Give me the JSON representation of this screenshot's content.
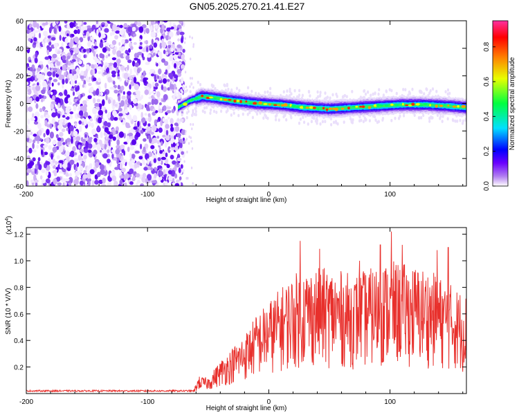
{
  "title": "GN05.2025.270.21.41.E27",
  "colors": {
    "snr_line": "#e8302c",
    "axis": "#000000",
    "background": "#ffffff"
  },
  "chart_data": [
    {
      "type": "heatmap",
      "name": "spectrogram",
      "xlabel": "Height of straight line (km)",
      "ylabel": "Frequency (Hz)",
      "xlim": [
        -200,
        163
      ],
      "ylim": [
        -60,
        60
      ],
      "x_ticks": [
        -200,
        -100,
        0,
        100
      ],
      "y_ticks": [
        -60,
        -40,
        -20,
        0,
        20,
        40,
        60
      ],
      "noise_region_km": [
        -200,
        -70
      ],
      "signal_region_km": [
        -75,
        163
      ],
      "ridge_center_hz": [
        {
          "x": -75,
          "y": -3
        },
        {
          "x": -65,
          "y": 2
        },
        {
          "x": -55,
          "y": 5
        },
        {
          "x": -45,
          "y": 4
        },
        {
          "x": -30,
          "y": 2
        },
        {
          "x": -10,
          "y": 0
        },
        {
          "x": 10,
          "y": -1
        },
        {
          "x": 30,
          "y": -3
        },
        {
          "x": 50,
          "y": -4
        },
        {
          "x": 70,
          "y": -3
        },
        {
          "x": 90,
          "y": -2
        },
        {
          "x": 110,
          "y": -1
        },
        {
          "x": 130,
          "y": -1
        },
        {
          "x": 150,
          "y": -2
        },
        {
          "x": 163,
          "y": -3
        }
      ],
      "colorbar": {
        "label": "Normalized spectral amplitude",
        "range": [
          0,
          0.95
        ],
        "ticks": [
          "0.0",
          "0.2",
          "0.4",
          "0.6",
          "0.8"
        ],
        "tick_values": [
          0.0,
          0.2,
          0.4,
          0.6,
          0.8
        ],
        "colors": [
          "#ffffff",
          "#b07cf0",
          "#6a00ff",
          "#0000ff",
          "#00e0ff",
          "#00ff40",
          "#e8ff00",
          "#ff8000",
          "#ff0000",
          "#ff30a0"
        ]
      }
    },
    {
      "type": "line",
      "name": "snr",
      "xlabel": "Height of straight line (km)",
      "ylabel": "SNR (10 * V/V)",
      "scale_note_base": "(x10",
      "scale_note_exp": "4",
      "scale_note_close": ")",
      "xlim": [
        -200,
        163
      ],
      "ylim": [
        0,
        1.25
      ],
      "x_ticks": [
        -200,
        -100,
        0,
        100
      ],
      "y_ticks": [
        0.2,
        0.4,
        0.6,
        0.8,
        1.0,
        1.2
      ],
      "y_tick_labels": [
        "0.2",
        "0.4",
        "0.6",
        "0.8",
        "1.0",
        "1.2"
      ],
      "baseline_noise": 0.02,
      "envelope": [
        {
          "x": -200,
          "y": 0.02
        },
        {
          "x": -62,
          "y": 0.02
        },
        {
          "x": -58,
          "y": 0.13
        },
        {
          "x": -50,
          "y": 0.12
        },
        {
          "x": -40,
          "y": 0.25
        },
        {
          "x": -30,
          "y": 0.35
        },
        {
          "x": -20,
          "y": 0.45
        },
        {
          "x": -10,
          "y": 0.6
        },
        {
          "x": 0,
          "y": 0.7
        },
        {
          "x": 10,
          "y": 0.8
        },
        {
          "x": 20,
          "y": 0.9
        },
        {
          "x": 30,
          "y": 0.95
        },
        {
          "x": 50,
          "y": 0.95
        },
        {
          "x": 70,
          "y": 0.9
        },
        {
          "x": 100,
          "y": 1.0
        },
        {
          "x": 130,
          "y": 0.95
        },
        {
          "x": 163,
          "y": 0.75
        }
      ],
      "peaks": [
        {
          "x": 26,
          "y": 1.15
        },
        {
          "x": 42,
          "y": 1.09
        },
        {
          "x": 75,
          "y": 1.0
        },
        {
          "x": 92,
          "y": 1.12
        },
        {
          "x": 101,
          "y": 1.22
        },
        {
          "x": 110,
          "y": 1.12
        },
        {
          "x": 139,
          "y": 1.08
        },
        {
          "x": 148,
          "y": 1.1
        }
      ]
    }
  ]
}
